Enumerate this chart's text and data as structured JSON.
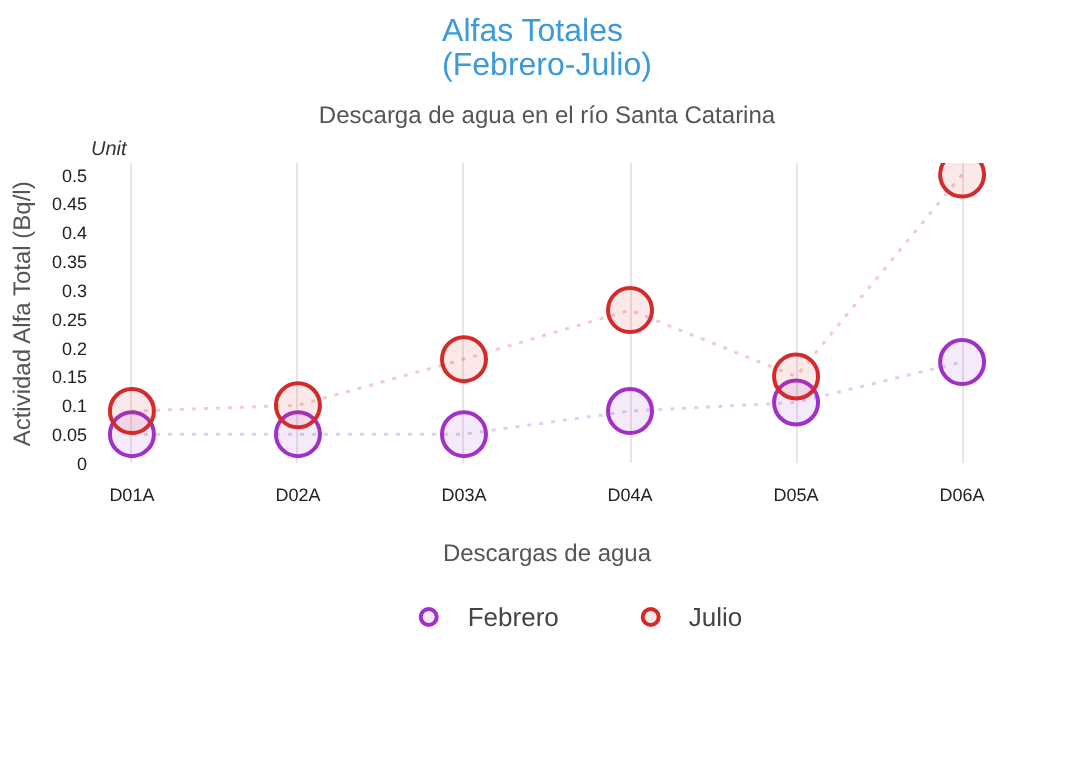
{
  "chart_data": {
    "type": "line",
    "title": "Alfas Totales\n(Febrero-Julio)",
    "subtitle": "Descarga de agua en el río Santa Catarina",
    "xlabel": "Descargas de agua",
    "ylabel": "Actividad Alfa Total (Bq/l)",
    "annotations": [
      "Unit"
    ],
    "categories": [
      "D01A",
      "D02A",
      "D03A",
      "D04A",
      "D05A",
      "D06A"
    ],
    "series": [
      {
        "name": "Febrero",
        "color": "#a030c8",
        "values": [
          0.05,
          0.05,
          0.05,
          0.09,
          0.105,
          0.175
        ]
      },
      {
        "name": "Julio",
        "color": "#d42a2a",
        "values": [
          0.09,
          0.1,
          0.18,
          0.265,
          0.15,
          0.5
        ]
      }
    ],
    "ylim": [
      0,
      0.52
    ],
    "yticks": [
      0,
      0.05,
      0.1,
      0.15,
      0.2,
      0.25,
      0.3,
      0.35,
      0.4,
      0.45,
      0.5
    ],
    "grid": "x",
    "legend": "bottom",
    "marker": "circle",
    "line_style": "dotted"
  }
}
